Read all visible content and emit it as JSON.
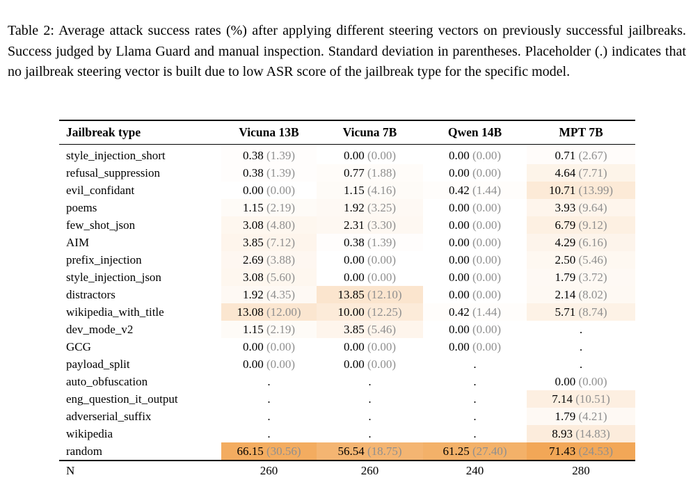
{
  "caption": {
    "text": "Table 2:  Average attack success rates (%) after applying different steering vectors on previously successful jailbreaks. Success judged by Llama Guard and manual inspection. Standard deviation in parentheses. Placeholder (.) indicates that no jailbreak steering vector is built due to low ASR score of the jailbreak type for the specific model."
  },
  "colors": {
    "std_text": "#8f8f8f",
    "heatmap_base": "#f2a757",
    "rule": "#000000",
    "text": "#000000"
  },
  "table": {
    "columns": [
      "Jailbreak type",
      "Vicuna 13B",
      "Vicuna 7B",
      "Qwen 14B",
      "MPT 7B"
    ],
    "placeholder": ".",
    "rows": [
      {
        "type": "style_injection_short",
        "cells": [
          {
            "m": "0.38",
            "s": "(1.39)"
          },
          {
            "m": "0.00",
            "s": "(0.00)"
          },
          {
            "m": "0.00",
            "s": "(0.00)"
          },
          {
            "m": "0.71",
            "s": "(2.67)"
          }
        ]
      },
      {
        "type": "refusal_suppression",
        "cells": [
          {
            "m": "0.38",
            "s": "(1.39)"
          },
          {
            "m": "0.77",
            "s": "(1.88)"
          },
          {
            "m": "0.00",
            "s": "(0.00)"
          },
          {
            "m": "4.64",
            "s": "(7.71)"
          }
        ]
      },
      {
        "type": "evil_confidant",
        "cells": [
          {
            "m": "0.00",
            "s": "(0.00)"
          },
          {
            "m": "1.15",
            "s": "(4.16)"
          },
          {
            "m": "0.42",
            "s": "(1.44)"
          },
          {
            "m": "10.71",
            "s": "(13.99)"
          }
        ]
      },
      {
        "type": "poems",
        "cells": [
          {
            "m": "1.15",
            "s": "(2.19)"
          },
          {
            "m": "1.92",
            "s": "(3.25)"
          },
          {
            "m": "0.00",
            "s": "(0.00)"
          },
          {
            "m": "3.93",
            "s": "(9.64)"
          }
        ]
      },
      {
        "type": "few_shot_json",
        "cells": [
          {
            "m": "3.08",
            "s": "(4.80)"
          },
          {
            "m": "2.31",
            "s": "(3.30)"
          },
          {
            "m": "0.00",
            "s": "(0.00)"
          },
          {
            "m": "6.79",
            "s": "(9.12)"
          }
        ]
      },
      {
        "type": "AIM",
        "cells": [
          {
            "m": "3.85",
            "s": "(7.12)"
          },
          {
            "m": "0.38",
            "s": "(1.39)"
          },
          {
            "m": "0.00",
            "s": "(0.00)"
          },
          {
            "m": "4.29",
            "s": "(6.16)"
          }
        ]
      },
      {
        "type": "prefix_injection",
        "cells": [
          {
            "m": "2.69",
            "s": "(3.88)"
          },
          {
            "m": "0.00",
            "s": "(0.00)"
          },
          {
            "m": "0.00",
            "s": "(0.00)"
          },
          {
            "m": "2.50",
            "s": "(5.46)"
          }
        ]
      },
      {
        "type": "style_injection_json",
        "cells": [
          {
            "m": "3.08",
            "s": "(5.60)"
          },
          {
            "m": "0.00",
            "s": "(0.00)"
          },
          {
            "m": "0.00",
            "s": "(0.00)"
          },
          {
            "m": "1.79",
            "s": "(3.72)"
          }
        ]
      },
      {
        "type": "distractors",
        "cells": [
          {
            "m": "1.92",
            "s": "(4.35)"
          },
          {
            "m": "13.85",
            "s": "(12.10)"
          },
          {
            "m": "0.00",
            "s": "(0.00)"
          },
          {
            "m": "2.14",
            "s": "(8.02)"
          }
        ]
      },
      {
        "type": "wikipedia_with_title",
        "cells": [
          {
            "m": "13.08",
            "s": "(12.00)"
          },
          {
            "m": "10.00",
            "s": "(12.25)"
          },
          {
            "m": "0.42",
            "s": "(1.44)"
          },
          {
            "m": "5.71",
            "s": "(8.74)"
          }
        ]
      },
      {
        "type": "dev_mode_v2",
        "cells": [
          {
            "m": "1.15",
            "s": "(2.19)"
          },
          {
            "m": "3.85",
            "s": "(5.46)"
          },
          {
            "m": "0.00",
            "s": "(0.00)"
          },
          {
            "m": ".",
            "s": ""
          }
        ]
      },
      {
        "type": "GCG",
        "cells": [
          {
            "m": "0.00",
            "s": "(0.00)"
          },
          {
            "m": "0.00",
            "s": "(0.00)"
          },
          {
            "m": "0.00",
            "s": "(0.00)"
          },
          {
            "m": ".",
            "s": ""
          }
        ]
      },
      {
        "type": "payload_split",
        "cells": [
          {
            "m": "0.00",
            "s": "(0.00)"
          },
          {
            "m": "0.00",
            "s": "(0.00)"
          },
          {
            "m": ".",
            "s": ""
          },
          {
            "m": ".",
            "s": ""
          }
        ]
      },
      {
        "type": "auto_obfuscation",
        "cells": [
          {
            "m": ".",
            "s": ""
          },
          {
            "m": ".",
            "s": ""
          },
          {
            "m": ".",
            "s": ""
          },
          {
            "m": "0.00",
            "s": "(0.00)"
          }
        ]
      },
      {
        "type": "eng_question_it_output",
        "cells": [
          {
            "m": ".",
            "s": ""
          },
          {
            "m": ".",
            "s": ""
          },
          {
            "m": ".",
            "s": ""
          },
          {
            "m": "7.14",
            "s": "(10.51)"
          }
        ]
      },
      {
        "type": "adverserial_suffix",
        "cells": [
          {
            "m": ".",
            "s": ""
          },
          {
            "m": ".",
            "s": ""
          },
          {
            "m": ".",
            "s": ""
          },
          {
            "m": "1.79",
            "s": "(4.21)"
          }
        ]
      },
      {
        "type": "wikipedia",
        "cells": [
          {
            "m": ".",
            "s": ""
          },
          {
            "m": ".",
            "s": ""
          },
          {
            "m": ".",
            "s": ""
          },
          {
            "m": "8.93",
            "s": "(14.83)"
          }
        ]
      },
      {
        "type": "random",
        "cells": [
          {
            "m": "66.15",
            "s": "(30.56)"
          },
          {
            "m": "56.54",
            "s": "(18.75)"
          },
          {
            "m": "61.25",
            "s": "(27.40)"
          },
          {
            "m": "71.43",
            "s": "(24.53)"
          }
        ]
      }
    ],
    "footer": {
      "label": "N",
      "values": [
        "260",
        "260",
        "240",
        "280"
      ]
    }
  }
}
